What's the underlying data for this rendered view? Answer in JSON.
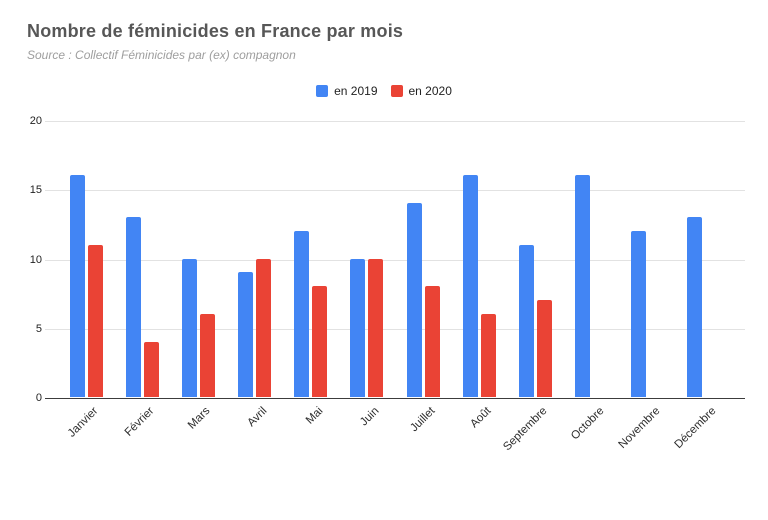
{
  "chart": {
    "title": "Nombre de féminicides en France par mois",
    "subtitle": "Source : Collectif Féminicides par (ex) compagnon"
  },
  "colors": {
    "series_2019": "#4285F4",
    "series_2020": "#EA4335",
    "gridline": "#e2e2e2",
    "axis_line": "#3c3c3c",
    "title_text": "#575757",
    "subtitle_text": "#9e9e9e",
    "axis_text": "#232323"
  },
  "chart_data": {
    "type": "bar",
    "title": "Nombre de féminicides en France par mois",
    "subtitle": "Source : Collectif Féminicides par (ex) compagnon",
    "categories": [
      "Janvier",
      "Février",
      "Mars",
      "Avril",
      "Mai",
      "Juin",
      "Juillet",
      "Août",
      "Septembre",
      "Octobre",
      "Novembre",
      "Décembre"
    ],
    "series": [
      {
        "name": "en 2019",
        "color": "#4285F4",
        "values": [
          16,
          13,
          10,
          9,
          12,
          10,
          14,
          16,
          11,
          16,
          12,
          13
        ]
      },
      {
        "name": "en 2020",
        "color": "#EA4335",
        "values": [
          11,
          4,
          6,
          10,
          8,
          10,
          8,
          6,
          7,
          null,
          null,
          null
        ]
      }
    ],
    "xlabel": "",
    "ylabel": "",
    "ylim": [
      0,
      20
    ],
    "yticks": [
      0,
      5,
      10,
      15,
      20
    ],
    "grid": true,
    "legend_position": "top-center",
    "bar_orientation": "vertical"
  }
}
